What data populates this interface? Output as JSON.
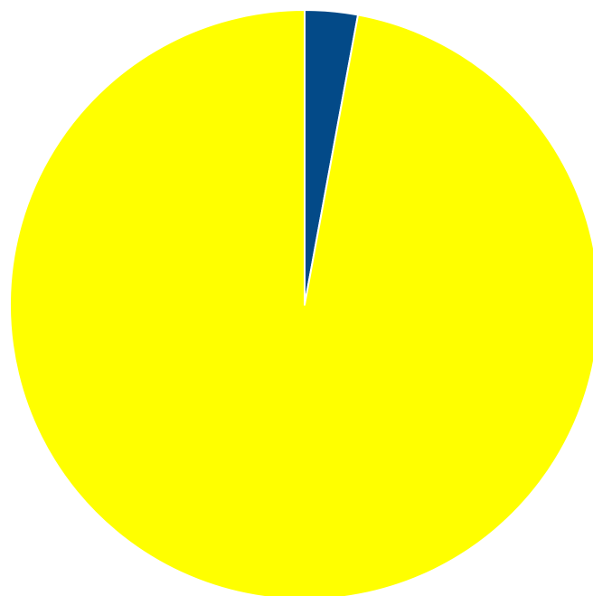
{
  "chart_data": {
    "type": "pie",
    "slices": [
      {
        "value": 2.9,
        "color": "#034a88"
      },
      {
        "value": 97.1,
        "color": "#ffff00"
      }
    ],
    "start": "top",
    "direction": "clockwise",
    "legend": "none"
  }
}
